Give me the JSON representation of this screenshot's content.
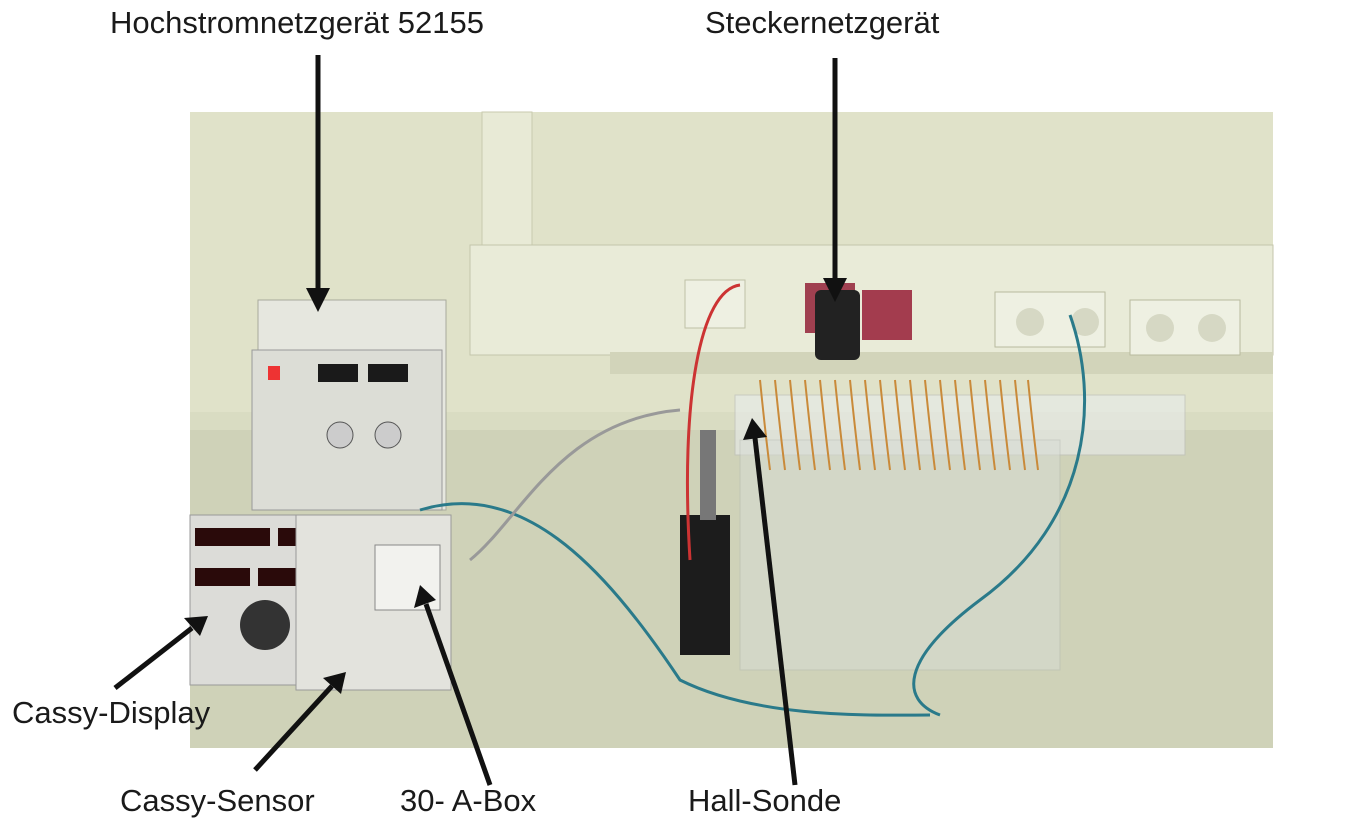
{
  "labels": [
    "Hochstromnetzgerät 52155",
    "Steckernetzgerät",
    "Cassy-Display",
    "Cassy-Sensor",
    "30- A-Box",
    "Hall-Sonde"
  ]
}
